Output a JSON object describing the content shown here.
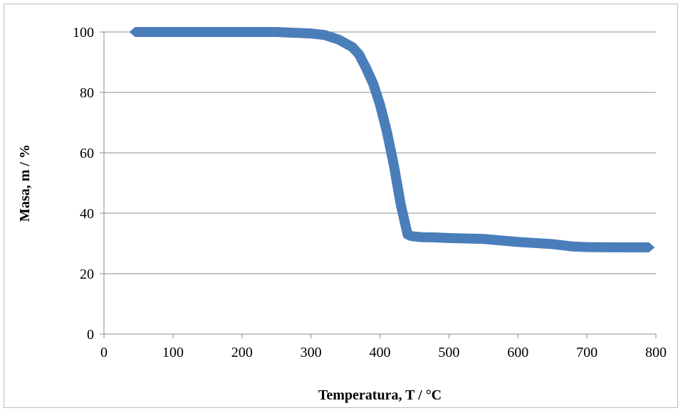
{
  "chart_data": {
    "type": "line",
    "title": "",
    "xlabel": "Temperatura, T / °C",
    "ylabel": "Masa, m / %",
    "xlim": [
      0,
      800
    ],
    "ylim": [
      0,
      100
    ],
    "x_ticks": [
      0,
      100,
      200,
      300,
      400,
      500,
      600,
      700,
      800
    ],
    "y_ticks": [
      0,
      20,
      40,
      60,
      80,
      100
    ],
    "x_tick_labels": [
      "0",
      "100",
      "200",
      "300",
      "400",
      "500",
      "600",
      "700",
      "800"
    ],
    "y_tick_labels": [
      "0",
      "20",
      "40",
      "60",
      "80",
      "100"
    ],
    "grid": "horizontal",
    "legend": "none",
    "series": [
      {
        "color": "#4a7ebb",
        "x": [
          45,
          100,
          150,
          200,
          250,
          300,
          320,
          340,
          360,
          370,
          380,
          390,
          400,
          410,
          420,
          430,
          440,
          445,
          450,
          455,
          460,
          480,
          500,
          550,
          600,
          650,
          680,
          700,
          750,
          790
        ],
        "y": [
          100,
          100,
          100,
          100,
          100,
          99.5,
          99,
          97.5,
          95,
          92.5,
          88,
          83,
          76,
          67,
          56,
          43,
          33,
          32.5,
          32.3,
          32.2,
          32.1,
          32,
          31.8,
          31.5,
          30.5,
          29.8,
          29,
          28.8,
          28.7,
          28.7
        ]
      }
    ]
  }
}
